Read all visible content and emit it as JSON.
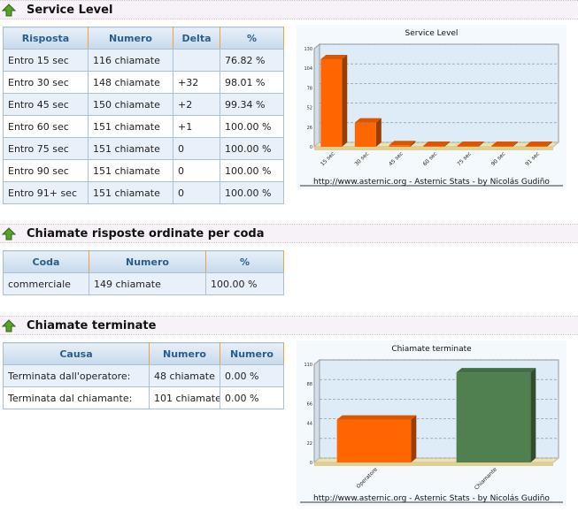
{
  "sections": [
    {
      "title": "Service Level",
      "table": {
        "headers": [
          "Risposta",
          "Numero",
          "Delta",
          "%"
        ],
        "rows": [
          [
            "Entro 15 sec",
            "116 chiamate",
            null,
            "76.82 %"
          ],
          [
            "Entro 30 sec",
            "148 chiamate",
            "+32",
            "98.01 %"
          ],
          [
            "Entro 45 sec",
            "150 chiamate",
            "+2",
            "99.34 %"
          ],
          [
            "Entro 60 sec",
            "151 chiamate",
            "+1",
            "100.00 %"
          ],
          [
            "Entro 75 sec",
            "151 chiamate",
            "0",
            "100.00 %"
          ],
          [
            "Entro 90 sec",
            "151 chiamate",
            "0",
            "100.00 %"
          ],
          [
            "Entro 91+ sec",
            "151 chiamate",
            "0",
            "100.00 %"
          ]
        ]
      }
    },
    {
      "title": "Chiamate risposte ordinate per coda",
      "table": {
        "headers": [
          "Coda",
          "Numero",
          "%"
        ],
        "rows": [
          [
            "commerciale",
            "149 chiamate",
            "100.00 %"
          ]
        ]
      }
    },
    {
      "title": "Chiamate terminate",
      "table": {
        "headers": [
          "Causa",
          "Numero",
          "Numero"
        ],
        "rows": [
          [
            "Terminata dall'operatore:",
            "48 chiamate",
            "0.00 %"
          ],
          [
            "Terminata dal chiamante:",
            "101 chiamate",
            "0.00 %"
          ]
        ]
      }
    }
  ],
  "chart_data": [
    {
      "type": "bar",
      "title": "Service Level",
      "categories": [
        "15 sec",
        "30 sec",
        "45 sec",
        "60 sec",
        "75 sec",
        "90 sec",
        "91 sec"
      ],
      "values": [
        116,
        32,
        2,
        1,
        0,
        0,
        0
      ],
      "colors": [
        "#ff6600",
        "#ff6600",
        "#ff6600",
        "#ff6600",
        "#ff6600",
        "#ff6600",
        "#ff6600"
      ],
      "ylim": [
        0,
        130
      ],
      "yticks": [
        0,
        26,
        52,
        78,
        104,
        130
      ],
      "grid": true,
      "credit": "http://www.asternic.org - Asternic Stats - by Nicolás Gudiño"
    },
    {
      "type": "bar",
      "title": "Chiamate terminate",
      "categories": [
        "Operatore",
        "Chiamante"
      ],
      "values": [
        48,
        101
      ],
      "colors": [
        "#ff6600",
        "#508050"
      ],
      "ylim": [
        0,
        110
      ],
      "yticks": [
        0,
        22,
        44,
        66,
        88,
        110
      ],
      "grid": true,
      "credit": "http://www.asternic.org - Asternic Stats - by Nicolás Gudiño"
    }
  ]
}
